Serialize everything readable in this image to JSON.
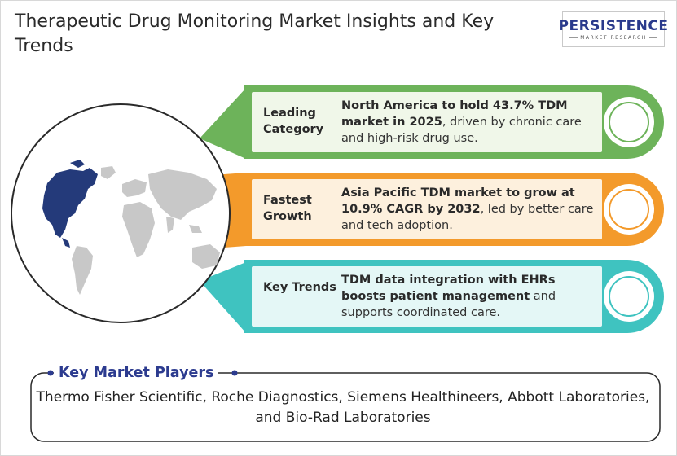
{
  "title": "Therapeutic Drug Monitoring Market Insights and Key Trends",
  "logo": {
    "main": "PERSISTENCE",
    "sub": "MARKET RESEARCH"
  },
  "cards": [
    {
      "label": "Leading Category",
      "bold": "North America to hold 43.7% TDM market in 2025",
      "rest": ", driven by chronic care and high-risk drug use.",
      "color": "#6db35a"
    },
    {
      "label": "Fastest Growth",
      "bold": "Asia Pacific TDM market to grow at 10.9% CAGR by 2032",
      "rest": ", led by better care and tech adoption.",
      "color": "#f39a2b"
    },
    {
      "label": "Key Trends",
      "bold": "TDM data integration with EHRs boosts patient management",
      "rest": " and supports coordinated care.",
      "color": "#3fc3c0"
    }
  ],
  "players": {
    "heading": "Key Market Players",
    "text": "Thermo Fisher Scientific, Roche Diagnostics, Siemens Healthineers, Abbott Laboratories, and Bio-Rad Laboratories"
  },
  "colors": {
    "green": "#6db35a",
    "green_fill": "#f0f7e9",
    "orange": "#f39a2b",
    "orange_fill": "#fdf0dd",
    "teal": "#3fc3c0",
    "teal_fill": "#e4f7f6",
    "map_highlight": "#243a7a",
    "map_base": "#c8c8c8"
  }
}
